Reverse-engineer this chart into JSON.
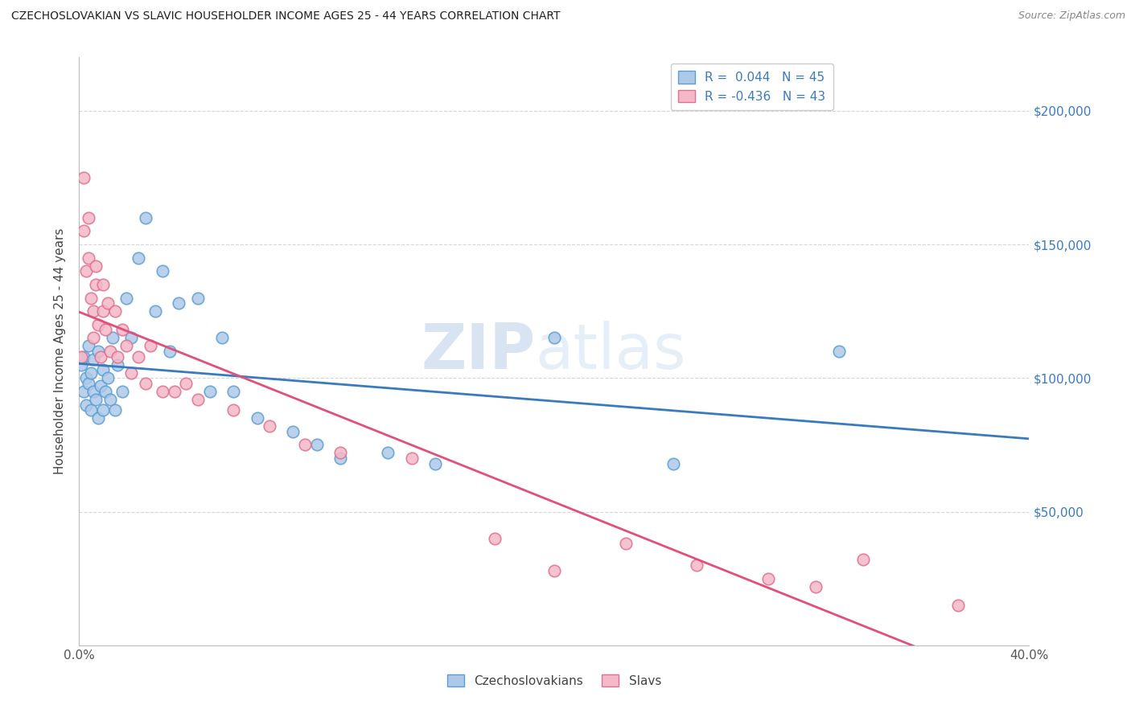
{
  "title": "CZECHOSLOVAKIAN VS SLAVIC HOUSEHOLDER INCOME AGES 25 - 44 YEARS CORRELATION CHART",
  "source": "Source: ZipAtlas.com",
  "ylabel": "Householder Income Ages 25 - 44 years",
  "xlim": [
    0.0,
    0.4
  ],
  "ylim": [
    0,
    220000
  ],
  "xticks": [
    0.0,
    0.05,
    0.1,
    0.15,
    0.2,
    0.25,
    0.3,
    0.35,
    0.4
  ],
  "xticklabels": [
    "0.0%",
    "",
    "",
    "",
    "",
    "",
    "",
    "",
    "40.0%"
  ],
  "ytick_positions": [
    50000,
    100000,
    150000,
    200000
  ],
  "ytick_labels": [
    "$50,000",
    "$100,000",
    "$150,000",
    "$200,000"
  ],
  "watermark_zip": "ZIP",
  "watermark_atlas": "atlas",
  "legend_r1": "R =  0.044",
  "legend_n1": "N = 45",
  "legend_r2": "R = -0.436",
  "legend_n2": "N = 43",
  "blue_fill": "#aec8e8",
  "blue_edge": "#5a9fd4",
  "pink_fill": "#f4b8c8",
  "pink_edge": "#e07090",
  "line_blue_color": "#3a7abf",
  "line_pink_color": "#e0507a",
  "czechs_x": [
    0.001,
    0.002,
    0.002,
    0.003,
    0.003,
    0.004,
    0.004,
    0.005,
    0.005,
    0.006,
    0.006,
    0.007,
    0.008,
    0.008,
    0.009,
    0.01,
    0.01,
    0.011,
    0.012,
    0.013,
    0.014,
    0.015,
    0.016,
    0.018,
    0.02,
    0.022,
    0.025,
    0.028,
    0.032,
    0.035,
    0.038,
    0.042,
    0.05,
    0.055,
    0.06,
    0.065,
    0.075,
    0.09,
    0.1,
    0.11,
    0.13,
    0.15,
    0.2,
    0.25,
    0.32
  ],
  "czechs_y": [
    105000,
    95000,
    108000,
    100000,
    90000,
    98000,
    112000,
    88000,
    102000,
    95000,
    107000,
    92000,
    85000,
    110000,
    97000,
    88000,
    103000,
    95000,
    100000,
    92000,
    115000,
    88000,
    105000,
    95000,
    130000,
    115000,
    145000,
    160000,
    125000,
    140000,
    110000,
    128000,
    130000,
    95000,
    115000,
    95000,
    85000,
    80000,
    75000,
    70000,
    72000,
    68000,
    115000,
    68000,
    110000
  ],
  "slavs_x": [
    0.001,
    0.002,
    0.002,
    0.003,
    0.004,
    0.004,
    0.005,
    0.006,
    0.006,
    0.007,
    0.007,
    0.008,
    0.009,
    0.01,
    0.01,
    0.011,
    0.012,
    0.013,
    0.015,
    0.016,
    0.018,
    0.02,
    0.022,
    0.025,
    0.028,
    0.03,
    0.035,
    0.04,
    0.045,
    0.05,
    0.065,
    0.08,
    0.095,
    0.11,
    0.14,
    0.175,
    0.2,
    0.23,
    0.26,
    0.29,
    0.31,
    0.33,
    0.37
  ],
  "slavs_y": [
    108000,
    175000,
    155000,
    140000,
    145000,
    160000,
    130000,
    125000,
    115000,
    135000,
    142000,
    120000,
    108000,
    125000,
    135000,
    118000,
    128000,
    110000,
    125000,
    108000,
    118000,
    112000,
    102000,
    108000,
    98000,
    112000,
    95000,
    95000,
    98000,
    92000,
    88000,
    82000,
    75000,
    72000,
    70000,
    40000,
    28000,
    38000,
    30000,
    25000,
    22000,
    32000,
    15000
  ]
}
